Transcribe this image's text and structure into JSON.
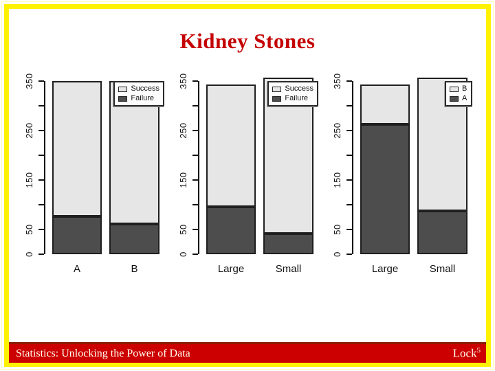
{
  "slide": {
    "title": "Kidney Stones",
    "title_color": "#c40000",
    "border_color": "#fff200"
  },
  "footer": {
    "left_text": "Statistics: Unlocking the Power of Data",
    "right_text": "Lock",
    "right_superscript": "5",
    "bg_color": "#cc0000",
    "accent_top_color": "#8b1a00",
    "text_color": "#fffff0"
  },
  "colors": {
    "light": "#e6e6e6",
    "dark": "#4d4d4d",
    "bar_border": "#1f1f1f",
    "axis": "#111111"
  },
  "chart_data": [
    {
      "type": "bar",
      "stacked": true,
      "categories": [
        "A",
        "B"
      ],
      "series": [
        {
          "name": "Failure",
          "swatch": "dark",
          "values": [
            77,
            61
          ]
        },
        {
          "name": "Success",
          "swatch": "light",
          "values": [
            273,
            289
          ]
        }
      ],
      "legend": [
        {
          "label": "Success",
          "swatch": "light"
        },
        {
          "label": "Failure",
          "swatch": "dark"
        }
      ],
      "ylim": [
        0,
        350
      ],
      "yticks_labeled": [
        0,
        50,
        150,
        250,
        350
      ],
      "yticks_minor": [
        100,
        200,
        300
      ],
      "legend_position": "top-right",
      "grid": false
    },
    {
      "type": "bar",
      "stacked": true,
      "categories": [
        "Large",
        "Small"
      ],
      "series": [
        {
          "name": "Failure",
          "swatch": "dark",
          "values": [
            96,
            42
          ]
        },
        {
          "name": "Success",
          "swatch": "light",
          "values": [
            247,
            315
          ]
        }
      ],
      "legend": [
        {
          "label": "Success",
          "swatch": "light"
        },
        {
          "label": "Failure",
          "swatch": "dark"
        }
      ],
      "ylim": [
        0,
        350
      ],
      "yticks_labeled": [
        0,
        50,
        150,
        250,
        350
      ],
      "yticks_minor": [
        100,
        200,
        300
      ],
      "legend_position": "top-right",
      "grid": false
    },
    {
      "type": "bar",
      "stacked": true,
      "categories": [
        "Large",
        "Small"
      ],
      "series": [
        {
          "name": "A",
          "swatch": "dark",
          "values": [
            263,
            87
          ]
        },
        {
          "name": "B",
          "swatch": "light",
          "values": [
            80,
            270
          ]
        }
      ],
      "legend": [
        {
          "label": "B",
          "swatch": "light"
        },
        {
          "label": "A",
          "swatch": "dark"
        }
      ],
      "ylim": [
        0,
        350
      ],
      "yticks_labeled": [
        0,
        50,
        150,
        250,
        350
      ],
      "yticks_minor": [
        100,
        200,
        300
      ],
      "legend_position": "top-right",
      "grid": false
    }
  ]
}
